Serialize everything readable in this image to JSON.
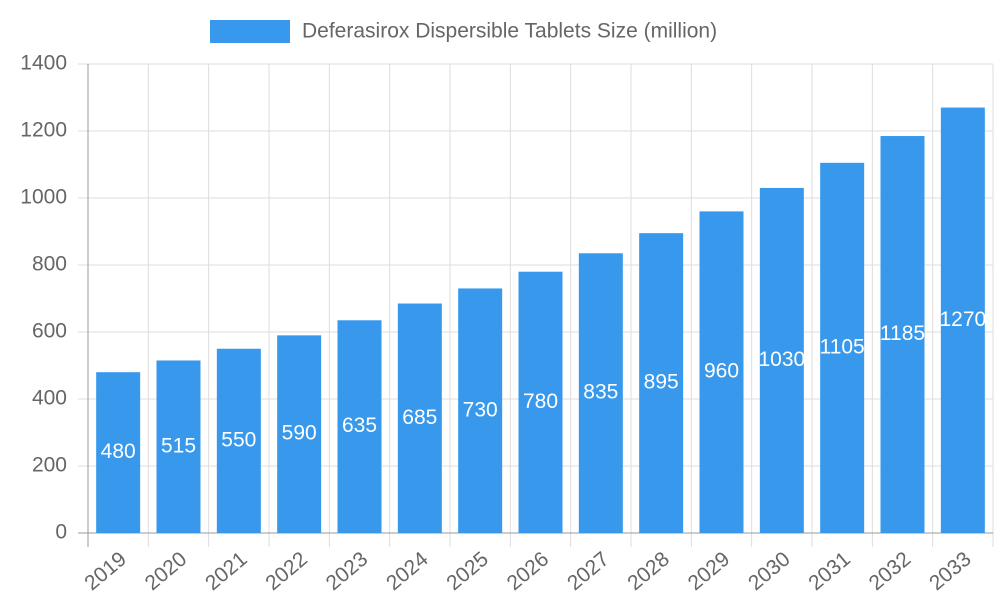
{
  "chart_data": {
    "type": "bar",
    "categories": [
      "2019",
      "2020",
      "2021",
      "2022",
      "2023",
      "2024",
      "2025",
      "2026",
      "2027",
      "2028",
      "2029",
      "2030",
      "2031",
      "2032",
      "2033"
    ],
    "series": [
      {
        "name": "Deferasirox Dispersible Tablets Size (million)",
        "color": "#3899ec",
        "values": [
          480,
          515,
          550,
          590,
          635,
          685,
          730,
          780,
          835,
          895,
          960,
          1030,
          1105,
          1185,
          1270
        ]
      }
    ],
    "ylim": [
      0,
      1400
    ],
    "yticks": [
      0,
      200,
      400,
      600,
      800,
      1000,
      1200,
      1400
    ],
    "grid": true,
    "legend": "top"
  }
}
